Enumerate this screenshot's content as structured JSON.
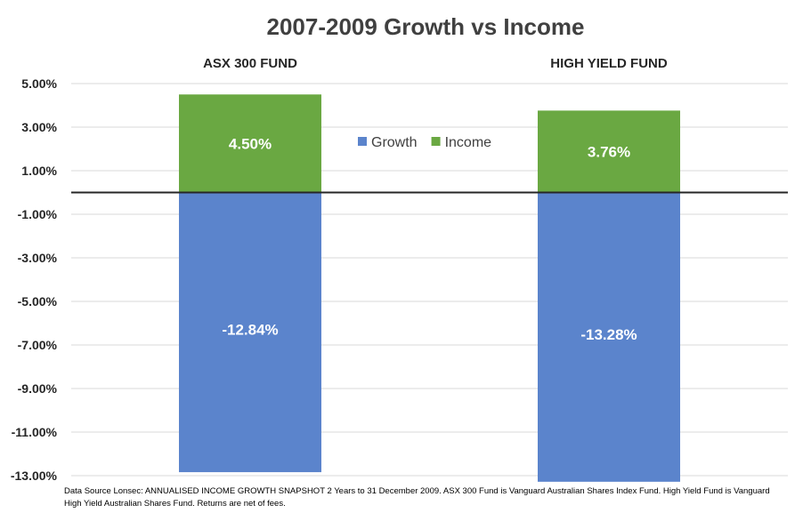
{
  "chart_data": {
    "type": "bar",
    "stacked": true,
    "title": "2007-2009 Growth vs Income",
    "categories": [
      "ASX 300 FUND",
      "HIGH YIELD FUND"
    ],
    "series": [
      {
        "name": "Growth",
        "values": [
          -12.84,
          -13.28
        ],
        "labels": [
          "-12.84%",
          "-13.28%"
        ],
        "color": "#5b84cc"
      },
      {
        "name": "Income",
        "values": [
          4.5,
          3.76
        ],
        "labels": [
          "4.50%",
          "3.76%"
        ],
        "color": "#6aa842"
      }
    ],
    "ylim": [
      -13,
      5
    ],
    "yticks": [
      5,
      3,
      1,
      -1,
      -3,
      -5,
      -7,
      -9,
      -11,
      -13
    ],
    "ytick_labels": [
      "5.00%",
      "3.00%",
      "1.00%",
      "-1.00%",
      "-3.00%",
      "-5.00%",
      "-7.00%",
      "-9.00%",
      "-11.00%",
      "-13.00%"
    ],
    "grid": true,
    "legend_position": "top-center",
    "footnote": "Data Source Lonsec: ANNUALISED INCOME GROWTH SNAPSHOT 2 Years to 31 December 2009. ASX 300 Fund is Vanguard Australian Shares Index Fund. High Yield Fund is Vanguard High Yield Australian Shares Fund. Returns are net of fees."
  }
}
